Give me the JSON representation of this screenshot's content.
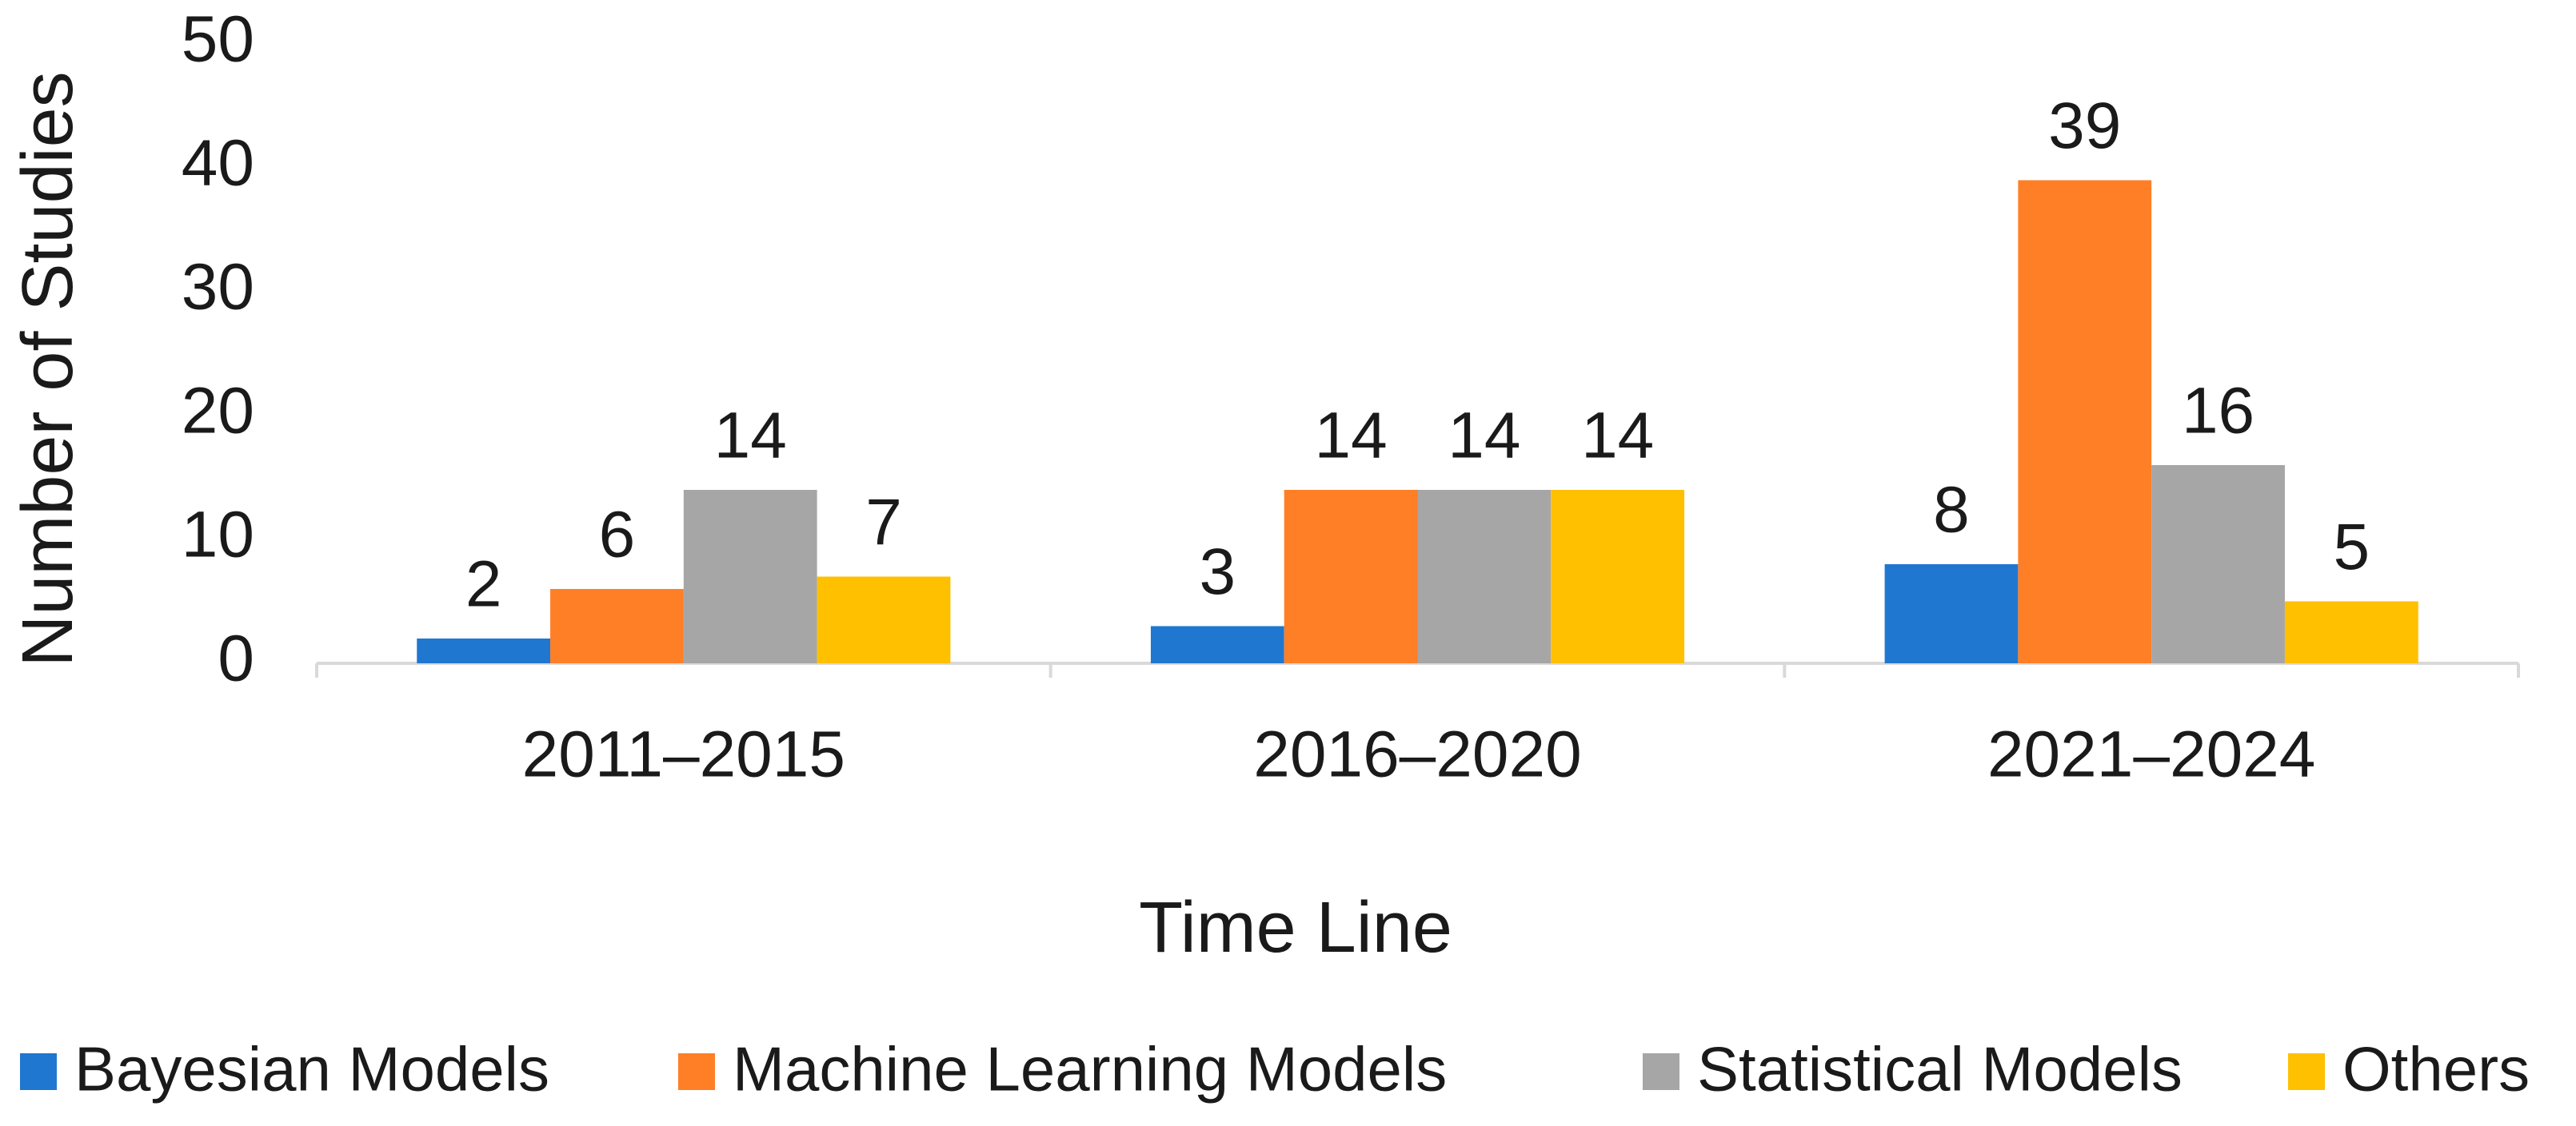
{
  "chart_data": {
    "type": "bar",
    "x_label": "Time Line",
    "y_label": "Number of Studies",
    "categories": [
      "2011–2015",
      "2016–2020",
      "2021–2024"
    ],
    "series": [
      {
        "name": "Bayesian Models",
        "color": "#1f77d0",
        "values": [
          2,
          3,
          8
        ]
      },
      {
        "name": "Machine Learning Models",
        "color": "#ff7f27",
        "values": [
          6,
          14,
          39
        ]
      },
      {
        "name": "Statistical Models",
        "color": "#a6a6a6",
        "values": [
          14,
          14,
          16
        ]
      },
      {
        "name": "Others",
        "color": "#ffc000",
        "values": [
          7,
          14,
          5
        ]
      }
    ],
    "ylim": [
      0,
      50
    ],
    "yticks": [
      0,
      10,
      20,
      30,
      40,
      50
    ],
    "grid": false,
    "legend": "bottom"
  }
}
